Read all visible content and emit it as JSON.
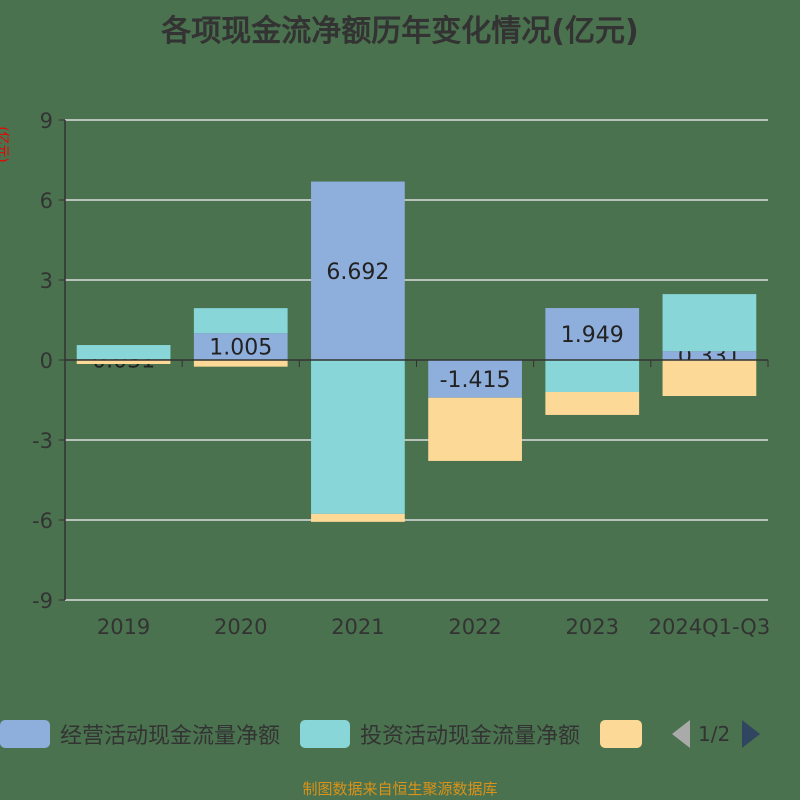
{
  "chart_data": {
    "type": "bar",
    "stacked": true,
    "title": "各项现金流净额历年变化情况(亿元)",
    "ylabel": "(亿元)",
    "categories": [
      "2019",
      "2020",
      "2021",
      "2022",
      "2023",
      "2024Q1-Q3"
    ],
    "ylim": [
      -9,
      9
    ],
    "yticks": [
      -9,
      -6,
      -3,
      0,
      3,
      6,
      9
    ],
    "grid": true,
    "series": [
      {
        "name": "经营活动现金流量净额",
        "color": "#8eaedb",
        "values": [
          0.031,
          1.005,
          6.692,
          -1.415,
          1.949,
          0.331
        ],
        "labels": [
          "0.031",
          "1.005",
          "6.692",
          "-1.415",
          "1.949",
          "0.331"
        ]
      },
      {
        "name": "投资活动现金流量净额",
        "color": "#88d6d8",
        "values": [
          0.53,
          0.94,
          -5.77,
          0,
          -1.2,
          2.14
        ]
      },
      {
        "name": "",
        "color": "#fdd997",
        "values": [
          -0.15,
          -0.25,
          -0.3,
          -2.37,
          -0.86,
          -1.35
        ]
      }
    ],
    "legend_position": "bottom"
  },
  "legend": {
    "page": "1/2"
  },
  "footer": "制图数据来自恒生聚源数据库"
}
